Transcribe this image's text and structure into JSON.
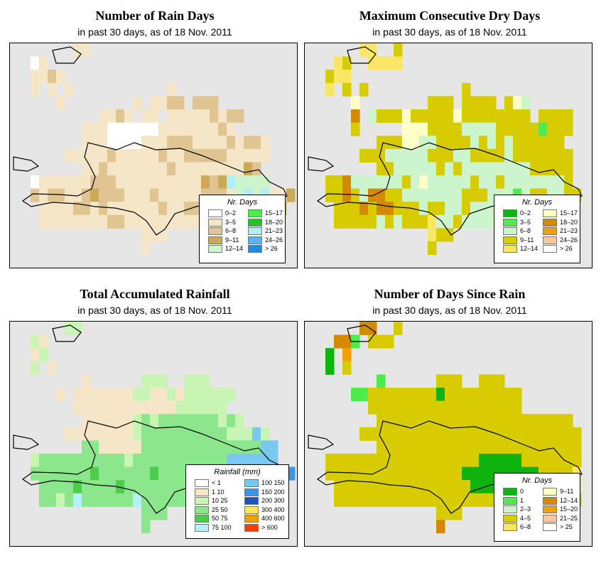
{
  "panels": [
    {
      "id": "rain_days",
      "title": "Number of Rain Days",
      "subtitle": "in past 30 days, as of  18 Nov. 2011",
      "legend": {
        "title": "Nr. Days",
        "items": [
          {
            "label": "0–2",
            "color": "#ffffff"
          },
          {
            "label": "3–5",
            "color": "#f5e6c8"
          },
          {
            "label": "6–8",
            "color": "#e0c592"
          },
          {
            "label": "9–11",
            "color": "#ccaa55"
          },
          {
            "label": "12–14",
            "color": "#ccf5cc"
          },
          {
            "label": "15–17",
            "color": "#4deb4d"
          },
          {
            "label": "18–20",
            "color": "#1ec81e"
          },
          {
            "label": "21–23",
            "color": "#b0eef8"
          },
          {
            "label": "24–26",
            "color": "#5ab4f0"
          },
          {
            "label": "> 26",
            "color": "#2a8ad8"
          }
        ]
      },
      "grid_rows": [
        ".......bb.......................",
        "..ab............................",
        "..bbcb..........................",
        "..b.b.b...........b.............",
        ".....b........b.bbcc.ccc........",
        "..........bbcb.bb.bbbbbcbcc.....",
        "........bbbaaaaaabbbbbbbcb......",
        "........bbbaaaabbbcccbbbbcbccb..",
        "......bbbbbcbbbbbcbbcccccbbbbb..",
        "........bbcbbbbbbbcbbbbbbbbdc...",
        "..abbbbbbcccbbbbbbbbbbdcdheeee..",
        "..cbccbbcdcccbbbcbbbbbcccbehehbbd",
        "...bbbbccbcbbbbbbcbbccbbbbbbbhbd.",
        "...bbbbbbbbccbbbbbbbbbb......e..",
        "...............bbb..............",
        "...............b................"
      ]
    },
    {
      "id": "dry_days",
      "title": "Maximum Consecutive Dry Days",
      "subtitle": "in past 30 days, as of  18 Nov. 2011",
      "legend": {
        "title": "Nr. Days",
        "items": [
          {
            "label": "0–2",
            "color": "#0fb40f"
          },
          {
            "label": "3–5",
            "color": "#4deb4d"
          },
          {
            "label": "6–8",
            "color": "#ccf5cc"
          },
          {
            "label": "9–11",
            "color": "#d6cc00"
          },
          {
            "label": "12–14",
            "color": "#fae664"
          },
          {
            "label": "15–17",
            "color": "#ffffc8"
          },
          {
            "label": "18–20",
            "color": "#d48a00"
          },
          {
            "label": "21–23",
            "color": "#f0a000"
          },
          {
            "label": "24–26",
            "color": "#f8c8a0"
          },
          {
            "label": "> 26",
            "color": "#ffffff"
          }
        ]
      },
      "grid_rows": [
        "......ee..d.....................",
        "...ed..eeee.....................",
        "..dee...........................",
        "..e.d.d...........d.............",
        ".....f........ddd.dddd.dfc......",
        ".....g.cdddfdddddfdddddddd.dddd.",
        ".....d.....fffddddccccdddddbddd.",
        "........dddffccddddcdcdcdddddd..",
        "......dddcccccdddccddddcddddddd.",
        "........ddcccccdcdccccccccddddd.",
        "..ddgccccccdcfcccccdccdcccccccd.",
        "..ddgdcggddcccccccdddcccbcddccdd",
        "...dddgdggdddcddccdcccdcdcdcccd.",
        "...dddddcdcdddeccdccccdd....dd..",
        "..............edd...............",
        "..............d................."
      ]
    },
    {
      "id": "rainfall",
      "title": "Total Accumulated Rainfall",
      "subtitle": "in past 30 days, as of  18 Nov. 2011",
      "legend": {
        "title": "Rainfall (mm)",
        "items": [
          {
            "label": "< 1",
            "color": "#ffffff"
          },
          {
            "label": "1    10",
            "color": "#f5e6c8"
          },
          {
            "label": "10    25",
            "color": "#c8f5b4"
          },
          {
            "label": "25    50",
            "color": "#8ce68c"
          },
          {
            "label": "50    75",
            "color": "#4ccd4c"
          },
          {
            "label": "75  100",
            "color": "#b4f0f8"
          },
          {
            "label": "100  150",
            "color": "#78c8f0"
          },
          {
            "label": "150  200",
            "color": "#3c96e6"
          },
          {
            "label": "200  300",
            "color": "#1e50c8"
          },
          {
            "label": "300  400",
            "color": "#fae664"
          },
          {
            "label": "400  600",
            "color": "#f0a000"
          },
          {
            "label": "> 600",
            "color": "#ff3c00"
          }
        ]
      },
      "grid_rows": [
        "......cc........................",
        "..cb............................",
        "..bc............................",
        "..c.b...........................",
        "........b......ccc..ccc.........",
        ".....b.bbbbbbbccbbcbcccccc......",
        ".......bbbbbbbbbbbbcccccc.......",
        "........bbbbbbcdcdddddddcdc.....",
        "......bbbbbbbbcddddddddddcccgc..",
        "........ddbbbbbddddddddddddddgg.",
        "..cddddddddddcdddddddddddgggggg.",
        "..dddddddeddddddeddddddfgfggggggh",
        "...ddddeddddeddddddddddfgfggghg.",
        "...ddcdfddddddfdddddddd......gf.",
        "...............ddd..............",
        "...............d................"
      ]
    },
    {
      "id": "since_rain",
      "title": "Number of Days Since Rain",
      "subtitle": "in past 30 days, as of  18 Nov. 2011",
      "legend": {
        "title": "Nr. Days",
        "items": [
          {
            "label": "0",
            "color": "#0fb40f"
          },
          {
            "label": "1",
            "color": "#4deb4d"
          },
          {
            "label": "2–3",
            "color": "#ccf5cc"
          },
          {
            "label": "4–5",
            "color": "#d6cc00"
          },
          {
            "label": "6–8",
            "color": "#fae664"
          },
          {
            "label": "9–11",
            "color": "#ffffc8"
          },
          {
            "label": "12–14",
            "color": "#d48a00"
          },
          {
            "label": "15–20",
            "color": "#f0a000"
          },
          {
            "label": "21–25",
            "color": "#f8c8a0"
          },
          {
            "label": "> 25",
            "color": "#ffffff"
          }
        ]
      },
      "grid_rows": [
        "......gg..d.....................",
        "...ggb.ddd......................",
        "..a.h...........................",
        "..a.d...........................",
        "........b......ddd..ddd.........",
        ".....bbddddddddaddddddddd.......",
        ".......dddddddddddddddddd.......",
        "........ddddddddddddddddddddddd.",
        "......dddddddddddddddddddddddddd",
        "........dddddddddddddddddddddddd",
        "..ddddddddddddddddddaaaaaddddddd",
        "..ddddddddddddddddaaaaaaaaadddde",
        "...ddddddddddddddddaaaaaaaaaddde",
        "...dddddddddddddddddddddd.....dd",
        "...............ddd..............",
        "...............g................"
      ]
    }
  ]
}
